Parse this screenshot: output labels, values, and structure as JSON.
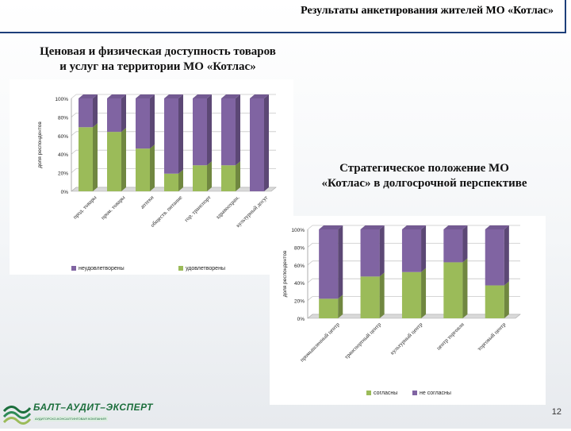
{
  "header": {
    "title": "Результаты анкетирования жителей МО «Котлас»"
  },
  "chart_data": [
    {
      "type": "bar",
      "stacked": true,
      "title_line1": "Ценовая и физическая доступность товаров",
      "title_line2": "и услуг на территории МО «Котлас»",
      "ylabel": "доля респондентов",
      "ylim": [
        0,
        100
      ],
      "ytick_labels": [
        "0%",
        "20%",
        "40%",
        "60%",
        "80%",
        "100%"
      ],
      "categories": [
        "прод. товары",
        "пром. товары",
        "аптеки",
        "обществ. питание",
        "гор. транспорт",
        "здравоохран.",
        "культурный досуг"
      ],
      "series": [
        {
          "name": "удовлетворены",
          "color": "#9bbb59",
          "values": [
            69,
            64,
            46,
            19,
            28,
            28,
            0
          ]
        },
        {
          "name": "неудовлетворены",
          "color": "#8064a2",
          "values": [
            31,
            36,
            54,
            81,
            72,
            72,
            100
          ]
        }
      ],
      "legend_order": [
        1,
        0
      ],
      "legend": "bottom"
    },
    {
      "type": "bar",
      "stacked": true,
      "title_line1": "Стратегическое положение МО",
      "title_line2": "«Котлас» в долгосрочной перспективе",
      "ylabel": "доля респондентов",
      "ylim": [
        0,
        100
      ],
      "ytick_labels": [
        "0%",
        "20%",
        "40%",
        "60%",
        "80%",
        "100%"
      ],
      "categories": [
        "промышленный центр",
        "транспортный центр",
        "культурный центр",
        "центр торговли",
        "торговый центр"
      ],
      "series": [
        {
          "name": "согласны",
          "color": "#9bbb59",
          "values": [
            22,
            47,
            52,
            63,
            37
          ]
        },
        {
          "name": "не согласны",
          "color": "#8064a2",
          "values": [
            78,
            53,
            48,
            37,
            63
          ]
        }
      ],
      "legend_order": [
        0,
        1
      ],
      "legend": "bottom"
    }
  ],
  "footer": {
    "logo_name": "БАЛТ–АУДИТ–ЭКСПЕРТ",
    "logo_subtitle": "АУДИТОРСКО-КОНСАЛТИНГОВАЯ КОМПАНИЯ",
    "page_number": "12"
  }
}
